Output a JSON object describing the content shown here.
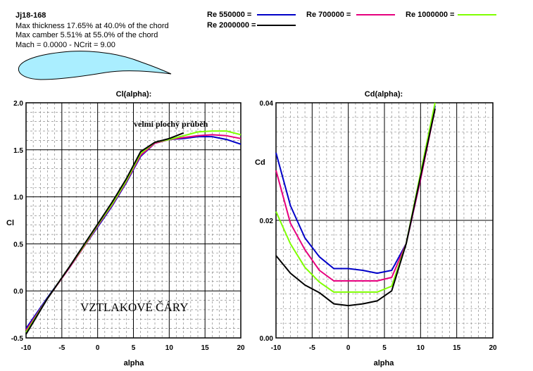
{
  "info": {
    "title": "Jj18-168",
    "thickness": "Max thickness 17.65% at 40.0% of the chord",
    "camber": "Max camber 5.51% at 55.0% of the chord",
    "mach": "Mach = 0.0000 - NCrit = 9.00"
  },
  "colors": {
    "re550000": "#0000c8",
    "re700000": "#e6007e",
    "re1000000": "#7fff00",
    "re2000000": "#000000",
    "airfoil_fill": "#aaeeff",
    "grid": "#000000"
  },
  "legend": [
    {
      "label": "Re 550000 =",
      "color": "#0000c8"
    },
    {
      "label": "Re 700000 =",
      "color": "#e6007e"
    },
    {
      "label": "Re 1000000 =",
      "color": "#7fff00"
    },
    {
      "label": "Re 2000000 =",
      "color": "#000000"
    }
  ],
  "annotations": {
    "top_note": "velmi plochý průběh",
    "bottom_note": "VZTLAKOVÉ ČÁRY"
  },
  "chart_data": [
    {
      "type": "line",
      "title": "Cl(alpha):",
      "xlabel": "alpha",
      "ylabel": "Cl",
      "xlim": [
        -10,
        20
      ],
      "ylim": [
        -0.5,
        2.0
      ],
      "xticks": [
        "-10",
        "-5",
        "0",
        "5",
        "10",
        "15",
        "20"
      ],
      "yticks": [
        "-0.5",
        "0.0",
        "0.5",
        "1.0",
        "1.5",
        "2.0"
      ],
      "grid": true,
      "series": [
        {
          "name": "Re 550000",
          "color": "#0000c8",
          "x": [
            -10,
            -7,
            -4,
            -2,
            0,
            2,
            4,
            6,
            8,
            10,
            12,
            14,
            16,
            18,
            20
          ],
          "y": [
            -0.4,
            -0.07,
            0.24,
            0.46,
            0.68,
            0.9,
            1.15,
            1.43,
            1.57,
            1.61,
            1.62,
            1.64,
            1.64,
            1.61,
            1.56
          ]
        },
        {
          "name": "Re 700000",
          "color": "#e6007e",
          "x": [
            -10,
            -7,
            -4,
            -2,
            0,
            2,
            4,
            6,
            8,
            10,
            12,
            14,
            16,
            18,
            20
          ],
          "y": [
            -0.42,
            -0.08,
            0.24,
            0.46,
            0.69,
            0.91,
            1.16,
            1.44,
            1.57,
            1.61,
            1.63,
            1.65,
            1.66,
            1.65,
            1.62
          ]
        },
        {
          "name": "Re 1000000",
          "color": "#7fff00",
          "x": [
            -10,
            -7,
            -4,
            -2,
            0,
            2,
            4,
            6,
            8,
            10,
            12,
            14,
            16,
            18,
            20
          ],
          "y": [
            -0.44,
            -0.08,
            0.25,
            0.47,
            0.7,
            0.92,
            1.17,
            1.46,
            1.58,
            1.61,
            1.65,
            1.69,
            1.7,
            1.7,
            1.66
          ]
        },
        {
          "name": "Re 2000000",
          "color": "#000000",
          "x": [
            -10,
            -7,
            -4,
            -2,
            0,
            2,
            4,
            6,
            8,
            10,
            12
          ],
          "y": [
            -0.46,
            -0.08,
            0.25,
            0.48,
            0.71,
            0.94,
            1.19,
            1.48,
            1.58,
            1.62,
            1.68
          ]
        }
      ]
    },
    {
      "type": "line",
      "title": "Cd(alpha):",
      "xlabel": "alpha",
      "ylabel": "Cd",
      "xlim": [
        -10,
        20
      ],
      "ylim": [
        0,
        0.04
      ],
      "xticks": [
        "-10",
        "-5",
        "0",
        "5",
        "10",
        "15",
        "20"
      ],
      "yticks": [
        "0.00",
        "0.02",
        "0.04"
      ],
      "grid": true,
      "series": [
        {
          "name": "Re 550000",
          "color": "#0000c8",
          "x": [
            -10,
            -8,
            -6,
            -4,
            -2,
            0,
            2,
            4,
            6,
            8,
            10,
            12
          ],
          "y": [
            0.0315,
            0.0225,
            0.017,
            0.0138,
            0.0118,
            0.0118,
            0.0115,
            0.011,
            0.0115,
            0.016,
            0.027,
            0.0395
          ]
        },
        {
          "name": "Re 700000",
          "color": "#e6007e",
          "x": [
            -10,
            -8,
            -6,
            -4,
            -2,
            0,
            2,
            4,
            6,
            8,
            10,
            12
          ],
          "y": [
            0.0285,
            0.0195,
            0.015,
            0.0115,
            0.0097,
            0.0097,
            0.0097,
            0.0097,
            0.0103,
            0.016,
            0.027,
            0.039
          ]
        },
        {
          "name": "Re 1000000",
          "color": "#7fff00",
          "x": [
            -10,
            -8,
            -6,
            -4,
            -2,
            0,
            2,
            4,
            6,
            8,
            10,
            12
          ],
          "y": [
            0.0215,
            0.016,
            0.012,
            0.0095,
            0.0078,
            0.0078,
            0.0078,
            0.0078,
            0.0088,
            0.016,
            0.028,
            0.04
          ]
        },
        {
          "name": "Re 2000000",
          "color": "#000000",
          "x": [
            -10,
            -8,
            -6,
            -4,
            -2,
            0,
            2,
            4,
            6,
            8,
            10,
            12
          ],
          "y": [
            0.014,
            0.011,
            0.009,
            0.0077,
            0.0058,
            0.0055,
            0.0058,
            0.0063,
            0.008,
            0.016,
            0.0275,
            0.039
          ]
        }
      ]
    }
  ]
}
